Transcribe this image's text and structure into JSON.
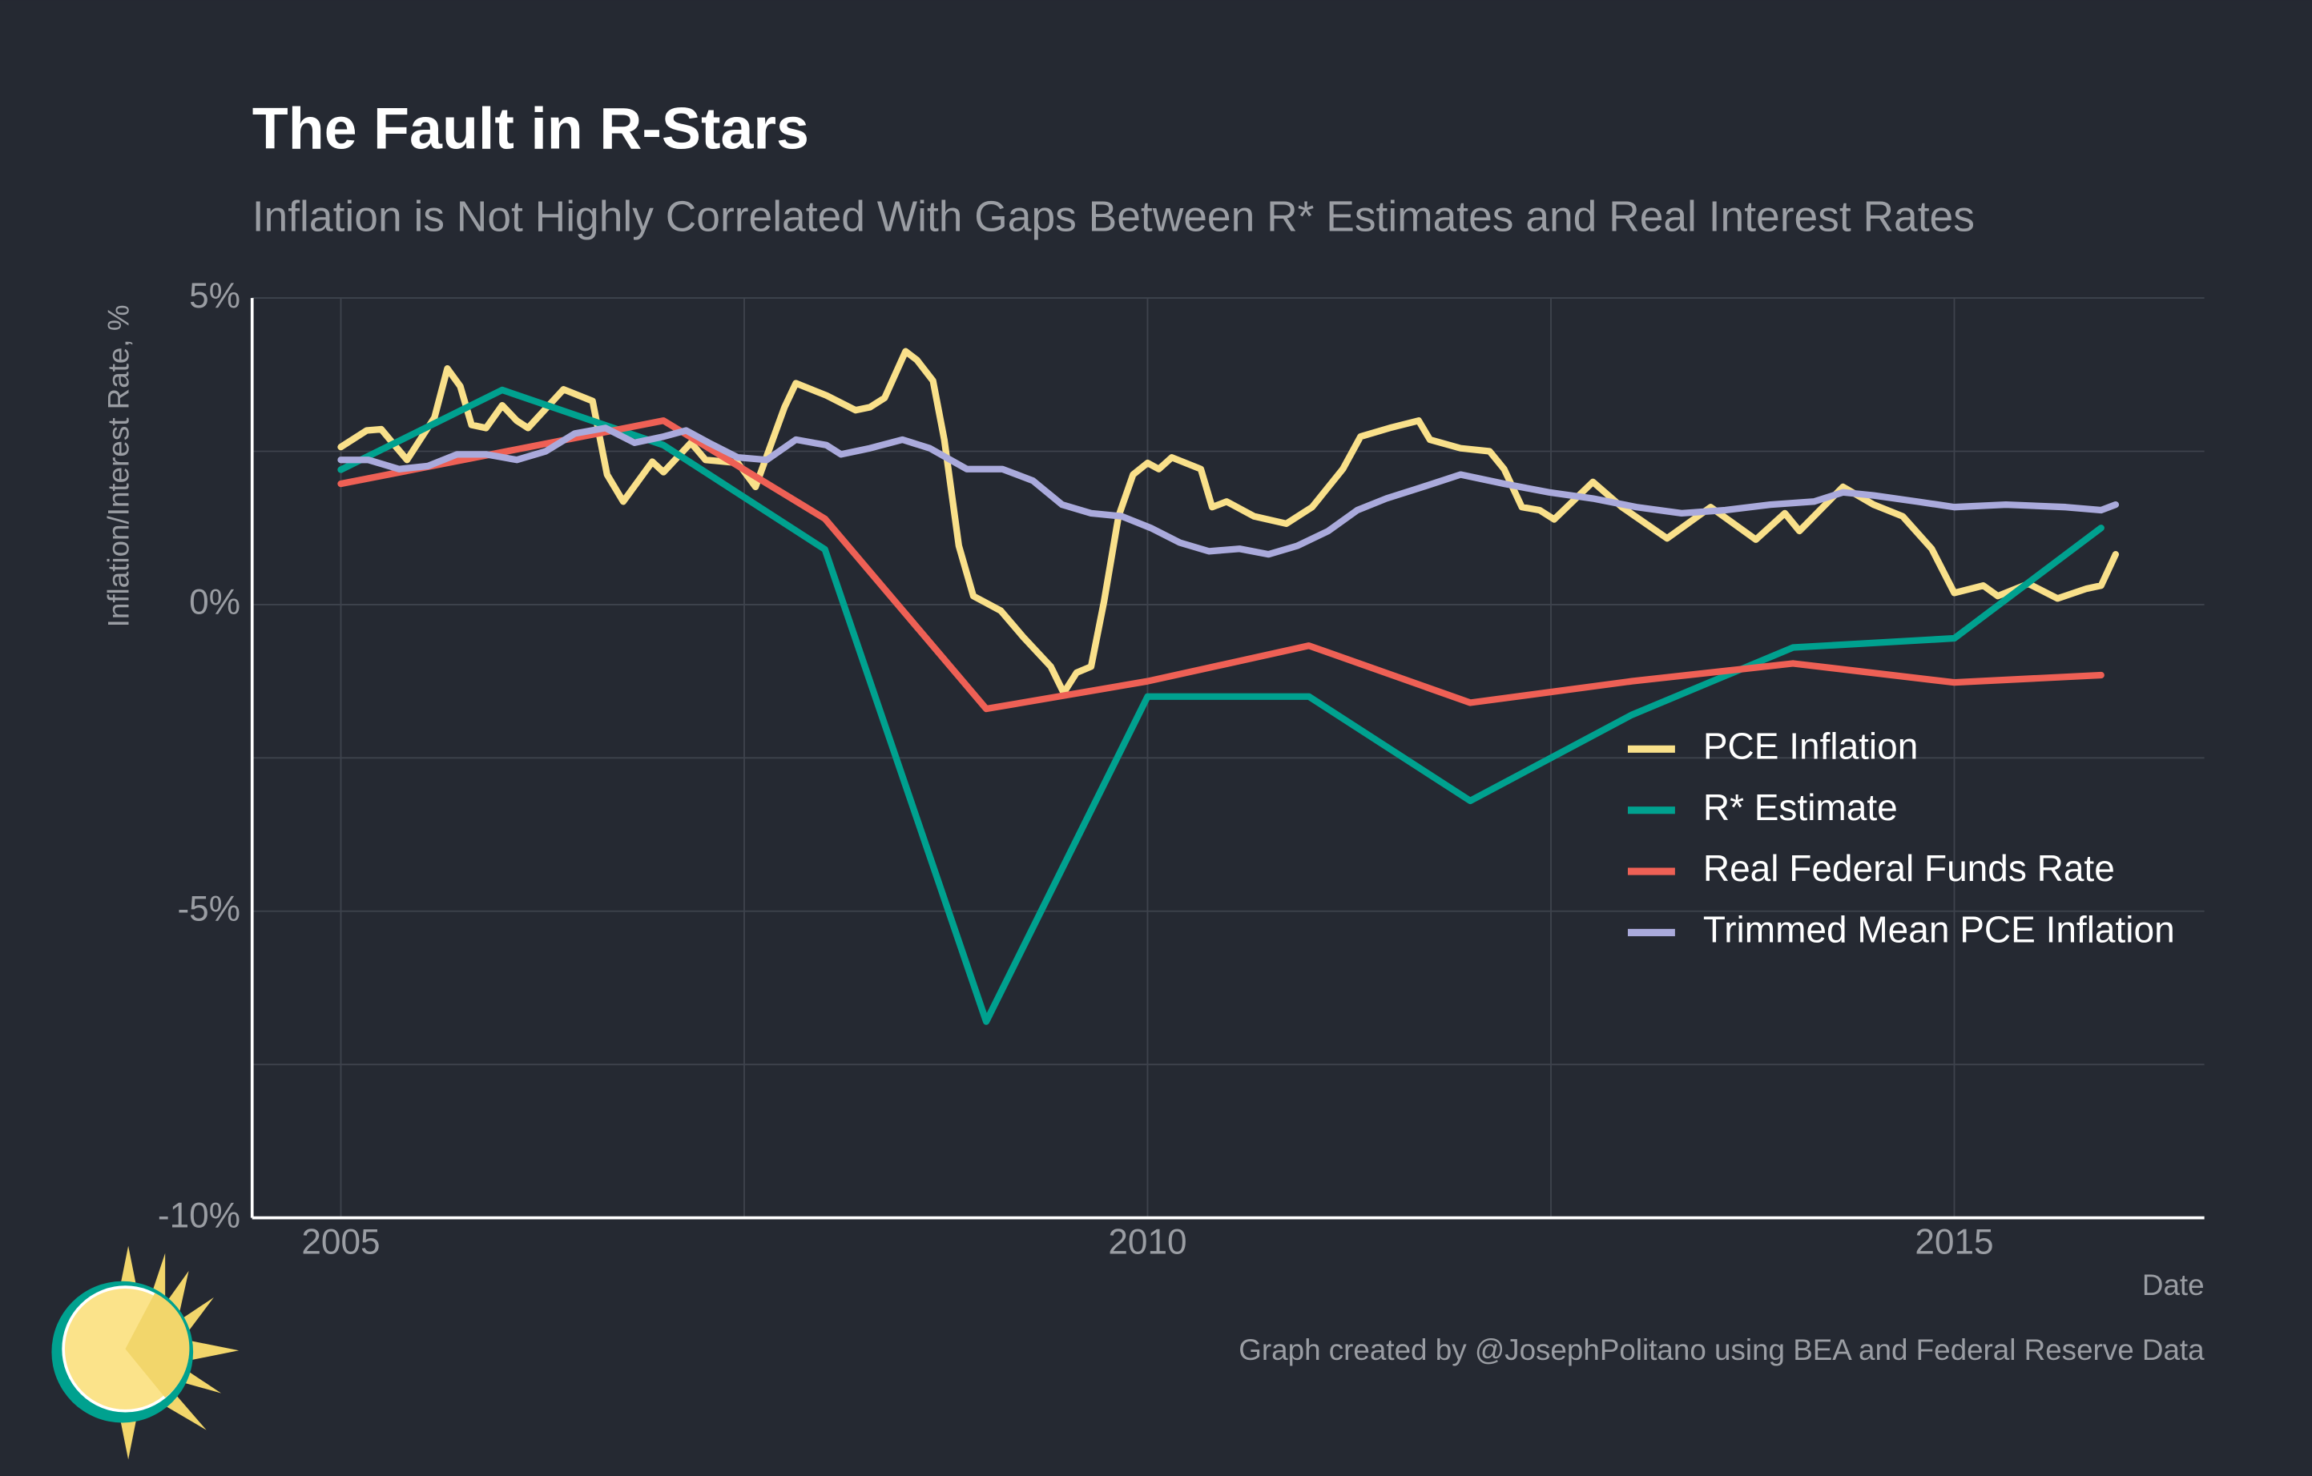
{
  "chart_data": {
    "type": "line",
    "title": "The Fault in R-Stars",
    "subtitle": "Inflation is Not Highly Correlated With Gaps Between R* Estimates and Real Interest Rates",
    "y_label": "Inflation/Interest Rate, %",
    "x_label": "Date",
    "caption": "Graph created by @JosephPolitano using BEA and Federal Reserve Data",
    "xlim": [
      2004.45,
      2016.55
    ],
    "xticks": [
      2005,
      2010,
      2015
    ],
    "x_minor_ticks": [
      2007.5,
      2012.5
    ],
    "ylim": [
      -10,
      5
    ],
    "yticks": [
      {
        "value": -10,
        "label": "-10%"
      },
      {
        "value": -5,
        "label": "-5%"
      },
      {
        "value": 0,
        "label": "0%"
      },
      {
        "value": 5,
        "label": "5%"
      }
    ],
    "y_minor_ticks": [
      -7.5,
      -2.5,
      2.5
    ],
    "grid": true,
    "legend_position": "right",
    "series": [
      {
        "name": "PCE Inflation",
        "color": "#f9e08a",
        "x": [
          2005.0,
          2005.16,
          2005.25,
          2005.32,
          2005.41,
          2005.58,
          2005.66,
          2005.74,
          2005.81,
          2005.9,
          2006.0,
          2006.09,
          2006.16,
          2006.38,
          2006.56,
          2006.65,
          2006.75,
          2006.93,
          2007.0,
          2007.17,
          2007.26,
          2007.46,
          2007.57,
          2007.75,
          2007.82,
          2008.01,
          2008.19,
          2008.28,
          2008.37,
          2008.5,
          2008.57,
          2008.67,
          2008.74,
          2008.83,
          2008.92,
          2009.09,
          2009.23,
          2009.4,
          2009.48,
          2009.56,
          2009.65,
          2009.73,
          2009.82,
          2009.91,
          2010.0,
          2010.07,
          2010.15,
          2010.33,
          2010.4,
          2010.49,
          2010.66,
          2010.86,
          2011.02,
          2011.21,
          2011.32,
          2011.5,
          2011.68,
          2011.75,
          2011.94,
          2012.12,
          2012.21,
          2012.32,
          2012.43,
          2012.52,
          2012.76,
          2012.94,
          2013.22,
          2013.49,
          2013.77,
          2013.95,
          2014.04,
          2014.31,
          2014.5,
          2014.68,
          2014.86,
          2015.0,
          2015.18,
          2015.27,
          2015.46,
          2015.64,
          2015.82,
          2015.91,
          2016.0
        ],
        "values": [
          2.57,
          2.84,
          2.86,
          2.64,
          2.36,
          3.05,
          3.85,
          3.56,
          2.93,
          2.88,
          3.25,
          3.0,
          2.88,
          3.51,
          3.32,
          2.12,
          1.68,
          2.33,
          2.16,
          2.64,
          2.36,
          2.31,
          1.92,
          3.22,
          3.61,
          3.41,
          3.17,
          3.22,
          3.37,
          4.13,
          3.99,
          3.65,
          2.69,
          0.96,
          0.14,
          -0.1,
          -0.53,
          -1.01,
          -1.44,
          -1.11,
          -1.01,
          0.05,
          1.44,
          2.12,
          2.31,
          2.21,
          2.4,
          2.21,
          1.59,
          1.68,
          1.44,
          1.32,
          1.59,
          2.21,
          2.74,
          2.88,
          3.0,
          2.69,
          2.55,
          2.5,
          2.21,
          1.59,
          1.54,
          1.39,
          2.0,
          1.59,
          1.08,
          1.59,
          1.06,
          1.49,
          1.2,
          1.92,
          1.63,
          1.44,
          0.91,
          0.19,
          0.31,
          0.14,
          0.34,
          0.1,
          0.26,
          0.31,
          0.82
        ]
      },
      {
        "name": "R* Estimate",
        "color": "#00a18f",
        "x": [
          2005,
          2006,
          2007,
          2008,
          2009,
          2010,
          2011,
          2012,
          2013,
          2014,
          2015,
          2015.91
        ],
        "values": [
          2.2,
          3.5,
          2.6,
          0.9,
          -6.8,
          -1.5,
          -1.5,
          -3.2,
          -1.8,
          -0.7,
          -0.55,
          1.25
        ]
      },
      {
        "name": "Real Federal Funds Rate",
        "color": "#ee6055",
        "x": [
          2005,
          2007,
          2008,
          2009,
          2010,
          2011,
          2012,
          2013,
          2014,
          2015,
          2015.91
        ],
        "values": [
          1.97,
          3.0,
          1.4,
          -1.7,
          -1.25,
          -0.67,
          -1.6,
          -1.25,
          -0.96,
          -1.27,
          -1.15
        ]
      },
      {
        "name": "Trimmed Mean PCE Inflation",
        "color": "#aaaadc",
        "x": [
          2005.0,
          2005.17,
          2005.36,
          2005.54,
          2005.72,
          2005.9,
          2006.09,
          2006.27,
          2006.45,
          2006.64,
          2006.82,
          2007.0,
          2007.14,
          2007.28,
          2007.46,
          2007.64,
          2007.82,
          2008.01,
          2008.1,
          2008.28,
          2008.48,
          2008.65,
          2008.88,
          2009.1,
          2009.29,
          2009.47,
          2009.65,
          2009.84,
          2010.02,
          2010.2,
          2010.38,
          2010.57,
          2010.75,
          2010.93,
          2011.12,
          2011.3,
          2011.48,
          2011.66,
          2011.94,
          2012.21,
          2012.49,
          2012.76,
          2013.03,
          2013.31,
          2013.58,
          2013.86,
          2014.13,
          2014.31,
          2014.5,
          2014.77,
          2015.0,
          2015.32,
          2015.69,
          2015.91,
          2016.0
        ],
        "values": [
          2.36,
          2.36,
          2.21,
          2.26,
          2.45,
          2.45,
          2.36,
          2.5,
          2.79,
          2.88,
          2.64,
          2.74,
          2.84,
          2.64,
          2.4,
          2.36,
          2.69,
          2.6,
          2.45,
          2.55,
          2.69,
          2.55,
          2.21,
          2.21,
          2.02,
          1.63,
          1.49,
          1.44,
          1.25,
          1.01,
          0.87,
          0.91,
          0.82,
          0.96,
          1.2,
          1.54,
          1.73,
          1.88,
          2.12,
          1.97,
          1.83,
          1.73,
          1.59,
          1.49,
          1.54,
          1.63,
          1.68,
          1.83,
          1.78,
          1.68,
          1.59,
          1.63,
          1.59,
          1.54,
          1.63
        ]
      }
    ]
  }
}
